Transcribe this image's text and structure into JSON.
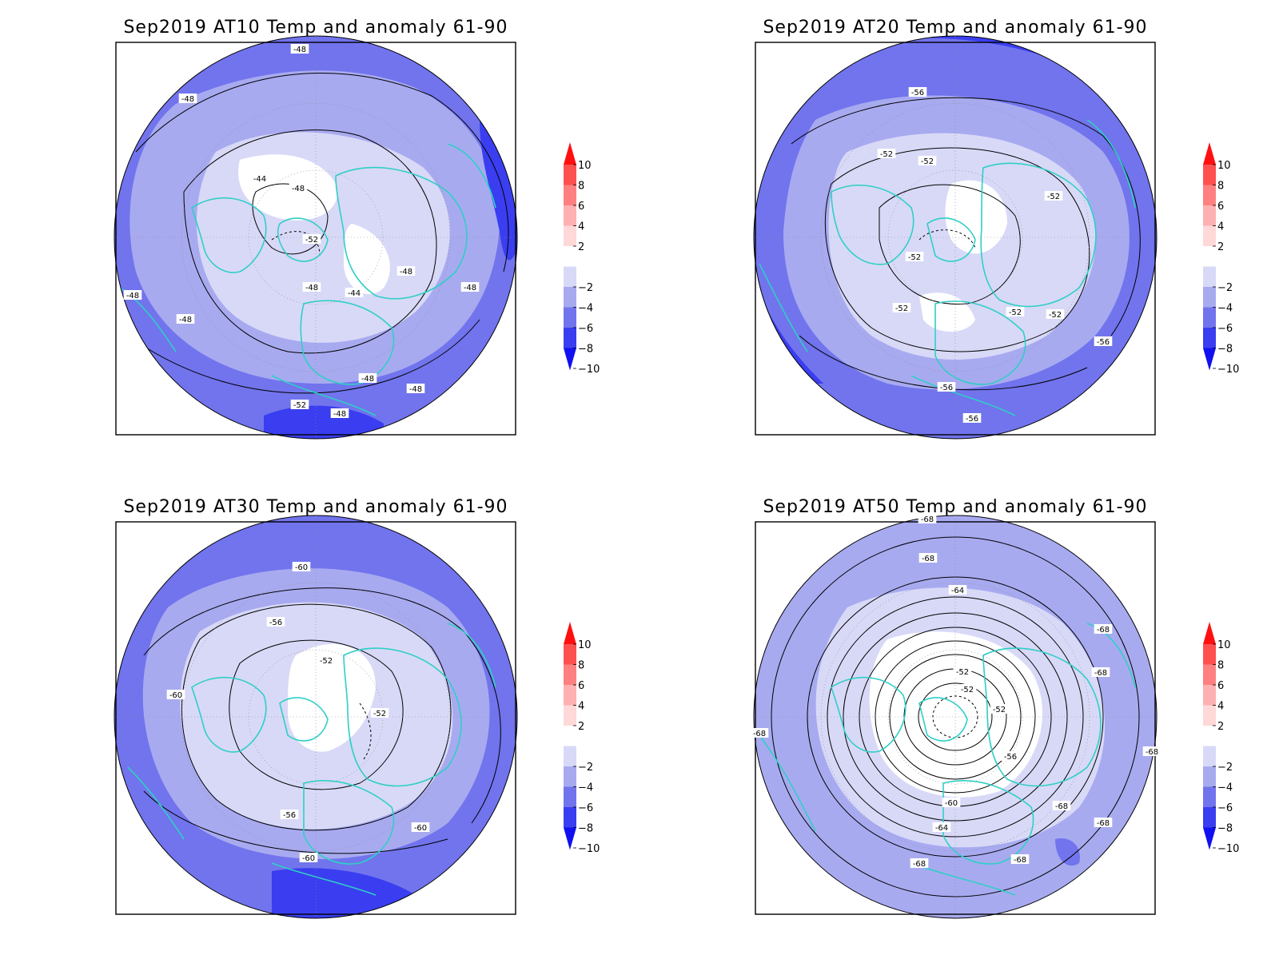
{
  "colors": {
    "white": "#ffffff",
    "a_m2": "#d8d9f7",
    "a_m4": "#a8aaf0",
    "a_m6": "#7174ec",
    "a_m8": "#3a3ef0",
    "a_m10": "#1010f0",
    "a_p2": "#ffd8d8",
    "a_p4": "#ffb0b0",
    "a_p6": "#ff8080",
    "a_p8": "#ff5050",
    "a_p10": "#ff1010",
    "coast": "#2fcfc6"
  },
  "colorbar": {
    "ticks": [
      "10",
      "8",
      "6",
      "4",
      "2",
      "−2",
      "−4",
      "−6",
      "−8",
      "−10"
    ]
  },
  "panels": [
    {
      "title": "Sep2019 AT10 Temp and anomaly 61-90",
      "contour_labels": [
        "-48",
        "-48",
        "-44",
        "-48",
        "-52",
        "-48",
        "-44",
        "-48",
        "-48",
        "-48",
        "-48",
        "-48",
        "-48",
        "-52",
        "-48"
      ]
    },
    {
      "title": "Sep2019 AT20 Temp and anomaly 61-90",
      "contour_labels": [
        "-56",
        "-52",
        "-52",
        "-52",
        "-52",
        "-52",
        "-52",
        "-52",
        "-56",
        "-56",
        "-56"
      ]
    },
    {
      "title": "Sep2019 AT30 Temp and anomaly 61-90",
      "contour_labels": [
        "-60",
        "-56",
        "-52",
        "-60",
        "-52",
        "-56",
        "-60",
        "-60"
      ]
    },
    {
      "title": "Sep2019 AT50 Temp and anomaly 61-90",
      "contour_labels": [
        "-68",
        "-68",
        "-64",
        "-68",
        "-52",
        "-52",
        "-52",
        "-68",
        "-68",
        "-56",
        "-68",
        "-60",
        "-68",
        "-64",
        "-68",
        "-68",
        "-68"
      ]
    }
  ]
}
